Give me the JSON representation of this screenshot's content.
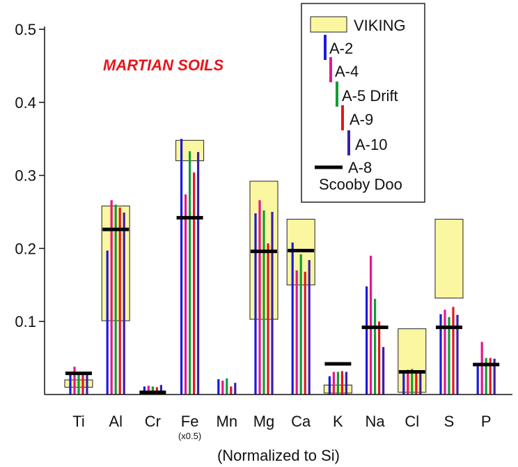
{
  "chart_data": {
    "type": "bar",
    "title": "",
    "annotation": "MARTIAN SOILS",
    "xlabel": "(Normalized to Si)",
    "ylabel": "",
    "ylim": [
      0,
      0.5
    ],
    "yticks": [
      "0.1",
      "0.2",
      "0.3",
      "0.4",
      "0.5"
    ],
    "ytick_values": [
      0.1,
      0.2,
      0.3,
      0.4,
      0.5
    ],
    "categories": [
      "Ti",
      "Al",
      "Cr",
      "Fe",
      "Mn",
      "Mg",
      "Ca",
      "K",
      "Na",
      "Cl",
      "S",
      "P"
    ],
    "category_notes": {
      "Fe": "(x0.5)"
    },
    "series": [
      {
        "name": "A-2",
        "color": "#1a1adf",
        "values": [
          0.03,
          0.197,
          0.011,
          0.35,
          0.021,
          0.248,
          0.208,
          0.025,
          0.148,
          0.032,
          0.11,
          0.04
        ]
      },
      {
        "name": "A-4",
        "color": "#e8158a",
        "values": [
          0.038,
          0.266,
          0.012,
          0.274,
          0.019,
          0.266,
          0.17,
          0.031,
          0.19,
          0.034,
          0.116,
          0.072
        ]
      },
      {
        "name": "A-5 Drift",
        "color": "#139b36",
        "values": [
          0.028,
          0.26,
          0.011,
          0.333,
          0.022,
          0.252,
          0.192,
          0.031,
          0.131,
          0.035,
          0.106,
          0.05
        ]
      },
      {
        "name": "A-9",
        "color": "#e8141b",
        "values": [
          0.028,
          0.256,
          0.01,
          0.304,
          0.011,
          0.207,
          0.168,
          0.032,
          0.1,
          0.03,
          0.12,
          0.05
        ]
      },
      {
        "name": "A-10",
        "color": "#3a1fa8",
        "values": [
          0.028,
          0.249,
          0.013,
          0.332,
          0.016,
          0.25,
          0.184,
          0.031,
          0.065,
          0.033,
          0.109,
          0.049
        ]
      }
    ],
    "scooby_doo": {
      "name": "A-8",
      "name_line2": "Scooby Doo",
      "color": "#000000",
      "values": [
        0.029,
        0.226,
        0.003,
        0.242,
        null,
        0.196,
        0.197,
        0.042,
        0.092,
        0.031,
        0.092,
        0.041
      ]
    },
    "viking": {
      "name": "VIKING",
      "fill": "#fbf7a0",
      "ranges": [
        [
          0.01,
          0.02
        ],
        [
          0.101,
          0.258
        ],
        null,
        [
          0.32,
          0.348
        ],
        null,
        [
          0.103,
          0.292
        ],
        [
          0.15,
          0.24
        ],
        [
          0.002,
          0.013
        ],
        null,
        [
          0.003,
          0.09
        ],
        [
          0.132,
          0.24
        ],
        null
      ]
    },
    "legend": {
      "placement": "top-right"
    },
    "grid": false
  }
}
